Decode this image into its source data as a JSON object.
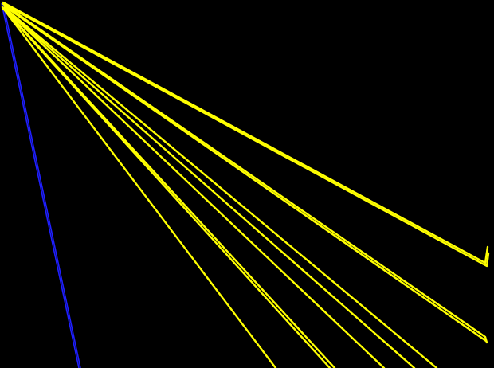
{
  "colors": {
    "background": "#000000",
    "yellow_lines": "#ffff00",
    "blue_line": "#1f1fff"
  }
}
